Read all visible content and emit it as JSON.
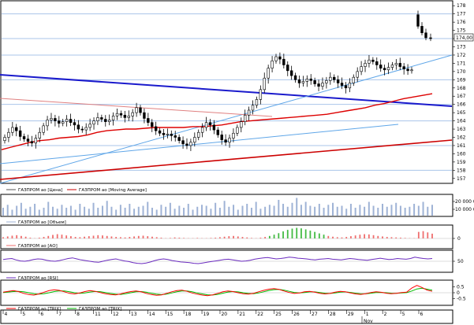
{
  "chart_data": [
    {
      "type": "candlestick",
      "panel": "price",
      "ylim": [
        156.5,
        178.5
      ],
      "y_ticks": [
        157,
        158,
        159,
        160,
        161,
        162,
        163,
        164,
        165,
        166,
        167,
        168,
        169,
        170,
        171,
        172,
        173,
        174,
        175,
        176,
        177,
        178
      ],
      "last_value_label": "174,00",
      "grid": true,
      "series": [
        {
          "name": "ГАЗПРОМ ао [Цена]",
          "color": "#000000"
        },
        {
          "name": "ГАЗПРОМ ао [Moving Average]",
          "color": "#cc0000"
        }
      ],
      "closes": [
        162.0,
        162.6,
        163.2,
        162.8,
        162.1,
        161.8,
        161.5,
        161.3,
        161.9,
        162.6,
        163.4,
        164.1,
        164.3,
        164.0,
        163.7,
        163.9,
        164.2,
        163.8,
        163.5,
        163.0,
        162.9,
        163.2,
        163.6,
        164.0,
        164.4,
        164.2,
        163.9,
        164.1,
        164.6,
        164.9,
        164.7,
        164.4,
        164.6,
        165.0,
        165.6,
        165.0,
        164.3,
        163.8,
        163.3,
        162.8,
        162.5,
        162.3,
        162.4,
        162.2,
        162.0,
        161.6,
        161.2,
        161.0,
        161.4,
        162.0,
        162.6,
        163.2,
        163.8,
        163.5,
        162.9,
        162.3,
        161.7,
        161.4,
        161.9,
        162.5,
        163.2,
        163.9,
        164.7,
        165.3,
        165.9,
        166.6,
        167.8,
        169.2,
        170.4,
        171.3,
        171.8,
        171.5,
        170.8,
        170.1,
        169.5,
        169.0,
        168.6,
        168.8,
        169.1,
        168.9,
        168.5,
        168.2,
        168.6,
        168.9,
        169.3,
        169.0,
        168.6,
        168.3,
        168.0,
        168.6,
        169.3,
        170.0,
        170.6,
        171.0,
        171.4,
        171.2,
        170.8,
        170.4,
        170.2,
        170.5,
        170.8,
        171.0,
        170.6,
        170.3,
        170.1,
        170.2
      ],
      "moving_average": [
        160.5,
        160.8,
        161.1,
        161.4,
        161.6,
        161.7,
        161.9,
        162.0,
        162.1,
        162.3,
        162.6,
        162.8,
        162.9,
        163.0,
        163.0,
        163.1,
        163.2,
        163.2,
        163.2,
        163.2,
        163.3,
        163.3,
        163.4,
        163.5,
        163.7,
        163.9,
        164.0,
        164.1,
        164.2,
        164.3,
        164.4,
        164.5,
        164.6,
        164.7,
        164.8,
        165.0,
        165.2,
        165.4,
        165.6,
        165.9,
        166.1,
        166.4,
        166.7,
        166.9,
        167.1,
        167.3
      ],
      "late_closes": [
        175.5,
        174.7,
        174.1,
        174.0
      ],
      "x_tick_labels": [
        "4",
        "5",
        "6",
        "7",
        "8",
        "11",
        "12",
        "13",
        "14",
        "15",
        "18",
        "19",
        "20",
        "21",
        "22",
        "25",
        "26",
        "27",
        "28",
        "29",
        "1",
        "2",
        "5",
        "6"
      ],
      "month_label": "Nov"
    },
    {
      "type": "bar",
      "panel": "volume",
      "series": [
        {
          "name": "ГАЗПРОМ ао [Объем]",
          "color": "#9fb3d6"
        }
      ],
      "y_ticks": [
        "20 000 000",
        "10 000 000"
      ],
      "values": [
        8,
        11,
        6,
        10,
        13,
        7,
        9,
        12,
        6,
        8,
        14,
        9,
        7,
        11,
        8,
        10,
        6,
        12,
        9,
        7,
        13,
        8,
        10,
        15,
        9,
        6,
        11,
        8,
        12,
        7,
        9,
        10,
        14,
        8,
        6,
        11,
        9,
        13,
        7,
        10,
        8,
        12,
        6,
        9,
        11,
        10,
        7,
        13,
        8,
        15,
        9,
        11,
        6,
        10,
        12,
        8,
        14,
        7,
        9,
        11,
        10,
        16,
        12,
        9,
        13,
        18,
        11,
        14,
        10,
        9,
        12,
        8,
        11,
        13,
        9,
        10,
        7,
        12,
        8,
        11,
        9,
        14,
        10,
        8,
        12,
        9,
        11,
        13,
        10,
        8,
        9,
        12,
        10,
        14,
        9,
        11
      ]
    },
    {
      "type": "bar",
      "panel": "ao",
      "series": [
        {
          "name": "ГАЗПРОМ ао [АО]",
          "color": "#ef6f6f"
        }
      ],
      "y_ticks": [
        "0"
      ],
      "values": [
        0.5,
        0.8,
        1.1,
        1.3,
        1.0,
        0.7,
        0.3,
        0.1,
        0.3,
        0.6,
        1.0,
        1.4,
        1.7,
        1.5,
        1.2,
        0.9,
        0.6,
        0.5,
        0.7,
        0.9,
        1.1,
        1.3,
        1.2,
        1.0,
        0.8,
        0.6,
        0.5,
        0.4,
        0.6,
        0.8,
        1.0,
        1.1,
        0.9,
        0.7,
        0.5,
        0.3,
        0.1,
        0.2,
        0.4,
        0.3,
        0.2,
        0.1,
        0.1,
        0.2,
        0.1,
        0.1,
        0.2,
        0.3,
        0.5,
        0.7,
        0.9,
        1.0,
        0.8,
        0.6,
        0.4,
        0.2,
        0.1,
        0.3,
        0.6,
        1.0,
        1.5,
        2.1,
        2.8,
        3.4,
        3.9,
        4.2,
        4.0,
        3.6,
        3.1,
        2.6,
        2.0,
        1.5,
        1.0,
        0.7,
        0.5,
        0.4,
        0.6,
        0.9,
        1.2,
        1.5,
        1.7,
        1.6,
        1.3,
        1.0,
        0.8,
        0.6,
        0.5,
        0.4,
        0.3,
        0.2,
        0.1,
        0.1,
        2.6,
        2.9,
        2.4,
        1.9
      ]
    },
    {
      "type": "line",
      "panel": "rsi",
      "series": [
        {
          "name": "ГАЗПРОМ ао [RSI]",
          "color": "#6a2bbf"
        }
      ],
      "y_ticks": [
        "50"
      ],
      "ylim": [
        20,
        80
      ],
      "values": [
        55,
        57,
        58,
        54,
        51,
        50,
        52,
        55,
        57,
        56,
        53,
        51,
        50,
        52,
        55,
        58,
        60,
        57,
        54,
        52,
        50,
        48,
        47,
        50,
        53,
        55,
        57,
        54,
        51,
        49,
        46,
        44,
        43,
        45,
        48,
        52,
        55,
        57,
        55,
        52,
        50,
        48,
        47,
        46,
        44,
        43,
        45,
        47,
        49,
        51,
        53,
        55,
        56,
        54,
        52,
        50,
        51,
        53,
        56,
        58,
        60,
        61,
        59,
        57,
        58,
        60,
        62,
        61,
        59,
        58,
        57,
        55,
        54,
        56,
        57,
        58,
        56,
        55,
        54,
        56,
        58,
        57,
        55,
        54,
        53,
        55,
        57,
        59,
        57,
        55,
        56,
        58,
        57,
        56,
        58,
        62,
        60,
        58,
        57,
        58
      ]
    },
    {
      "type": "line",
      "panel": "trix",
      "series": [
        {
          "name": "ГАЗПРОМ ао [TRIX]",
          "color": "#ff0000"
        },
        {
          "name": "ГАЗПРОМ ао [TRIX]",
          "color": "#00bb00"
        }
      ],
      "y_ticks": [
        "0.5",
        "0",
        "-0.5"
      ],
      "ylim": [
        -1,
        1
      ],
      "trix": [
        0.05,
        0.12,
        0.18,
        0.1,
        -0.05,
        -0.15,
        -0.2,
        -0.1,
        0.05,
        0.18,
        0.25,
        0.2,
        0.08,
        -0.05,
        -0.1,
        -0.02,
        0.1,
        0.18,
        0.12,
        0.02,
        -0.08,
        -0.15,
        -0.18,
        -0.1,
        0.02,
        0.1,
        0.15,
        0.08,
        -0.05,
        -0.15,
        -0.22,
        -0.18,
        -0.05,
        0.08,
        0.18,
        0.22,
        0.12,
        -0.02,
        -0.12,
        -0.2,
        -0.25,
        -0.18,
        -0.05,
        0.08,
        0.15,
        0.1,
        0.0,
        -0.08,
        -0.12,
        -0.05,
        0.08,
        0.2,
        0.3,
        0.35,
        0.28,
        0.15,
        0.02,
        -0.06,
        -0.02,
        0.08,
        0.12,
        0.05,
        -0.05,
        -0.1,
        -0.06,
        0.05,
        0.12,
        0.08,
        -0.02,
        -0.1,
        -0.14,
        -0.08,
        0.02,
        0.08,
        0.04,
        -0.04,
        -0.08,
        -0.05,
        0.02,
        0.05,
        0.4,
        0.62,
        0.45,
        0.22,
        0.12
      ],
      "signal": [
        0.02,
        0.06,
        0.1,
        0.12,
        0.08,
        0.0,
        -0.08,
        -0.12,
        -0.08,
        0.0,
        0.1,
        0.16,
        0.15,
        0.08,
        0.0,
        -0.05,
        -0.02,
        0.06,
        0.11,
        0.09,
        0.02,
        -0.06,
        -0.12,
        -0.14,
        -0.08,
        0.0,
        0.08,
        0.1,
        0.05,
        -0.04,
        -0.12,
        -0.16,
        -0.12,
        -0.02,
        0.08,
        0.15,
        0.15,
        0.08,
        -0.02,
        -0.1,
        -0.17,
        -0.19,
        -0.14,
        -0.04,
        0.06,
        0.1,
        0.07,
        0.0,
        -0.06,
        -0.08,
        -0.02,
        0.08,
        0.18,
        0.26,
        0.28,
        0.22,
        0.12,
        0.03,
        -0.02,
        0.02,
        0.07,
        0.07,
        0.02,
        -0.04,
        -0.06,
        -0.02,
        0.05,
        0.07,
        0.03,
        -0.04,
        -0.09,
        -0.09,
        -0.04,
        0.02,
        0.03,
        0.0,
        -0.04,
        -0.05,
        -0.02,
        0.01,
        0.15,
        0.32,
        0.38,
        0.3,
        0.22
      ]
    }
  ]
}
